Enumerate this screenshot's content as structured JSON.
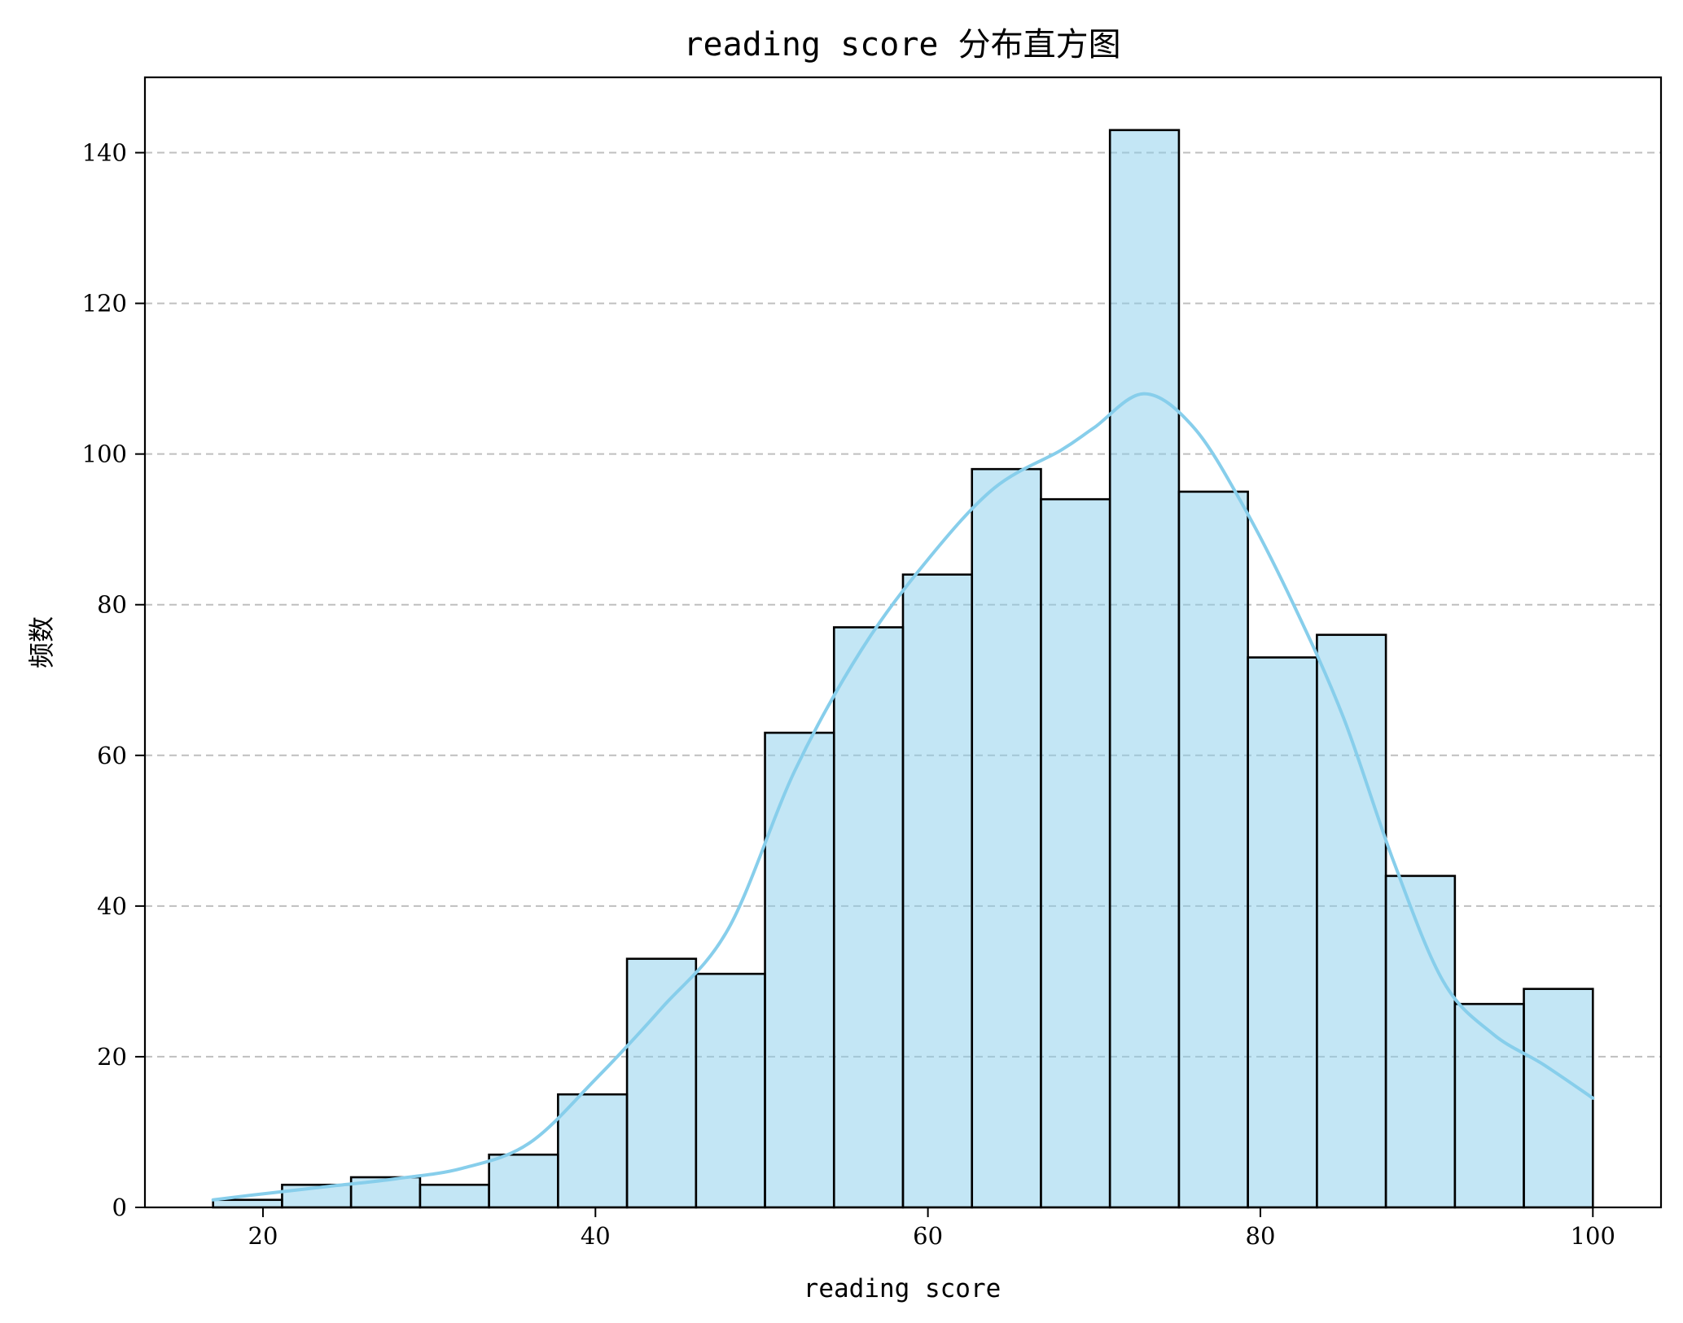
{
  "chart_data": {
    "type": "bar",
    "title": "reading score 分布直方图",
    "xlabel": "reading score",
    "ylabel": "频数",
    "xlim": [
      12.9,
      104.1
    ],
    "ylim": [
      0,
      150
    ],
    "x_ticks": [
      20,
      40,
      60,
      80,
      100
    ],
    "y_ticks": [
      0,
      20,
      40,
      60,
      80,
      100,
      120,
      140
    ],
    "grid": "y-dashed",
    "bar_color": "#87ceeb",
    "kde_color": "#87ceeb",
    "bin_edges": [
      17,
      21.15,
      25.3,
      29.45,
      33.6,
      37.75,
      41.9,
      46.05,
      50.2,
      54.35,
      58.5,
      62.65,
      66.8,
      70.95,
      75.1,
      79.25,
      83.4,
      87.55,
      91.7,
      95.85,
      100
    ],
    "values": [
      1,
      3,
      4,
      3,
      7,
      15,
      33,
      31,
      63,
      77,
      84,
      98,
      94,
      143,
      95,
      73,
      76,
      44,
      27,
      29
    ],
    "kde_curve": {
      "x": [
        17,
        20,
        24,
        28,
        32,
        36,
        40,
        44,
        48,
        52,
        56,
        60,
        64,
        68,
        70,
        73,
        76,
        79,
        82,
        85,
        88,
        91,
        94,
        97,
        100
      ],
      "y": [
        1,
        1.8,
        2.8,
        3.8,
        5.2,
        8.5,
        17,
        26.5,
        37,
        58,
        74,
        86,
        95.5,
        100.5,
        103.5,
        108,
        103.5,
        93,
        80,
        65,
        46,
        30,
        23,
        19,
        14.5
      ]
    }
  }
}
